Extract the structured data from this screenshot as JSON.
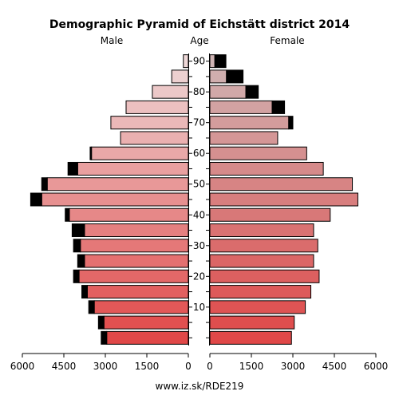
{
  "chart_data": {
    "type": "bar",
    "title": "Demographic Pyramid of Eichstätt district 2014",
    "labels": {
      "male": "Male",
      "age": "Age",
      "female": "Female"
    },
    "footer": "www.iz.sk/RDE219",
    "xlim": [
      0,
      6000
    ],
    "x_ticks": [
      0,
      1500,
      3000,
      4500,
      6000
    ],
    "x_tick_labels_left": [
      "6000",
      "4500",
      "3000",
      "1500",
      "0"
    ],
    "x_tick_labels_right": [
      "0",
      "1500",
      "3000",
      "4500",
      "6000"
    ],
    "age_tick_labels": [
      "10",
      "20",
      "30",
      "40",
      "50",
      "60",
      "70",
      "80",
      "90"
    ],
    "age_groups": [
      "0-4",
      "5-9",
      "10-14",
      "15-19",
      "20-24",
      "25-29",
      "30-34",
      "35-39",
      "40-44",
      "45-49",
      "50-54",
      "55-59",
      "60-64",
      "65-69",
      "70-74",
      "75-79",
      "80-84",
      "85-89",
      "90+"
    ],
    "male_values": [
      2950,
      3050,
      3400,
      3650,
      3950,
      3750,
      3900,
      3750,
      4300,
      5300,
      5100,
      4000,
      3500,
      2450,
      2800,
      2250,
      1300,
      600,
      180
    ],
    "male_excess": [
      200,
      200,
      200,
      200,
      200,
      250,
      250,
      450,
      150,
      400,
      200,
      350,
      50,
      0,
      0,
      0,
      0,
      0,
      0
    ],
    "female_values": [
      2950,
      3050,
      3450,
      3650,
      3950,
      3750,
      3900,
      3750,
      4350,
      5350,
      5150,
      4100,
      3500,
      2450,
      2850,
      2250,
      1300,
      600,
      180
    ],
    "female_excess": [
      0,
      0,
      0,
      0,
      0,
      0,
      0,
      0,
      0,
      0,
      0,
      0,
      0,
      0,
      150,
      450,
      450,
      600,
      400
    ]
  }
}
